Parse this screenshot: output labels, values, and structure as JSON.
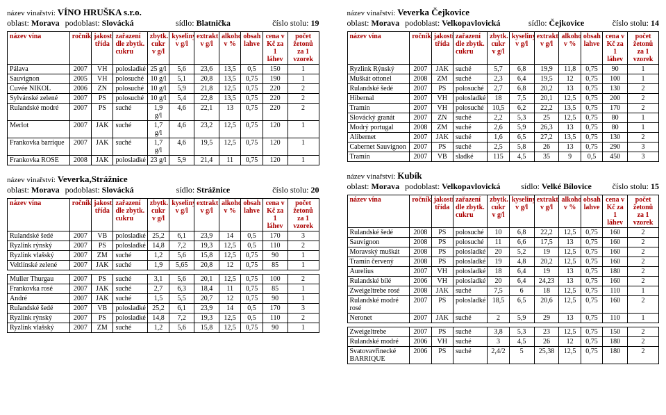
{
  "headerColors": {
    "headerText": "#a00000",
    "border": "#000000",
    "background": "#ffffff"
  },
  "columns": [
    {
      "key": "name",
      "label": "název vína",
      "cls": "col-name"
    },
    {
      "key": "year",
      "label": "ročník",
      "cls": "col-year num"
    },
    {
      "key": "class",
      "label": "jakostí třída",
      "cls": "col-class num"
    },
    {
      "key": "sugar",
      "label": "zařazení dle zbytk. cukru",
      "cls": "col-sugar"
    },
    {
      "key": "res",
      "label": "zbytk. cukr v g/l",
      "cls": "col-res num"
    },
    {
      "key": "acid",
      "label": "kyseliny v g/l",
      "cls": "col-acid num"
    },
    {
      "key": "ext",
      "label": "extrakt v g/l",
      "cls": "col-ext num"
    },
    {
      "key": "alc",
      "label": "alkohol v %",
      "cls": "col-alc num"
    },
    {
      "key": "bot",
      "label": "obsah lahve",
      "cls": "col-bot num"
    },
    {
      "key": "price",
      "label": "cena v Kč za 1 láhev",
      "cls": "col-price num"
    },
    {
      "key": "tok",
      "label": "počet žetonů za 1 vzorek",
      "cls": "col-tok num"
    }
  ],
  "blocks": [
    {
      "col": 0,
      "winery": "VÍNO HRUŠKA s.r.o.",
      "region": "Morava",
      "subregion": "Slovácká",
      "seat": "Blatnička",
      "tableNo": "19",
      "rows": [
        [
          "Pálava",
          "2007",
          "VH",
          "polosladké",
          "25 g/l",
          "5,6",
          "23,6",
          "13,5",
          "0,5",
          "150",
          "1"
        ],
        [
          "Sauvignon",
          "2005",
          "VH",
          "polosuché",
          "10 g/l",
          "5,1",
          "20,8",
          "13,5",
          "0,75",
          "190",
          "1"
        ],
        [
          "Cuvée NIKOL",
          "2006",
          "ZN",
          "polosuché",
          "10 g/l",
          "5,9",
          "21,8",
          "12,5",
          "0,75",
          "220",
          "2"
        ],
        [
          "Sylvánské zelené",
          "2007",
          "PS",
          "polosuché",
          "10 g/l",
          "5,4",
          "22,8",
          "13,5",
          "0,75",
          "220",
          "2"
        ],
        [
          "Rulandské modré",
          "2007",
          "PS",
          "suché",
          "1,9 g/l",
          "4,6",
          "22,1",
          "13",
          "0,75",
          "220",
          "2"
        ],
        [
          "Merlot",
          "2007",
          "JAK",
          "suché",
          "1,7 g/l",
          "4,6",
          "23,2",
          "12,5",
          "0,75",
          "120",
          "1"
        ],
        [
          "Frankovka barrique",
          "2007",
          "JAK",
          "suché",
          "1,7 g/l",
          "4,6",
          "19,5",
          "12,5",
          "0,75",
          "120",
          "1"
        ],
        [
          "Frankovka ROSE",
          "2008",
          "JAK",
          "polosladké",
          "23 g/l",
          "5,9",
          "21,4",
          "11",
          "0,75",
          "120",
          "1"
        ]
      ]
    },
    {
      "col": 0,
      "winery": "Veverka,Strážnice",
      "region": "Morava",
      "subregion": "Slovácká",
      "seat": "Strážnice",
      "tableNo": "20",
      "rows": [
        [
          "Rulandské šedé",
          "2007",
          "VB",
          "polosladké",
          "25,2",
          "6,1",
          "23,9",
          "14",
          "0,5",
          "170",
          "3"
        ],
        [
          "Ryzlink rýnský",
          "2007",
          "PS",
          "polosladké",
          "14,8",
          "7,2",
          "19,3",
          "12,5",
          "0,5",
          "110",
          "2"
        ],
        [
          "Ryzlink vlašský",
          "2007",
          "ZM",
          "suché",
          "1,2",
          "5,6",
          "15,8",
          "12,5",
          "0,75",
          "90",
          "1"
        ],
        [
          "Veltlínské zelené",
          "2007",
          "JAK",
          "suché",
          "1,9",
          "5,65",
          "20,8",
          "12",
          "0,75",
          "85",
          "1"
        ],
        [
          "__gap__"
        ],
        [
          "Muller Thurgau",
          "2007",
          "PS",
          "suché",
          "3,1",
          "5,6",
          "20,1",
          "12,5",
          "0,75",
          "100",
          "2"
        ],
        [
          "Frankovka rosé",
          "2007",
          "JAK",
          "suché",
          "2,7",
          "6,3",
          "18,4",
          "11",
          "0,75",
          "85",
          "1"
        ],
        [
          "André",
          "2007",
          "JAK",
          "suché",
          "1,5",
          "5,5",
          "20,7",
          "12",
          "0,75",
          "90",
          "1"
        ],
        [
          "Rulandské šedé",
          "2007",
          "VB",
          "polosladké",
          "25,2",
          "6,1",
          "23,9",
          "14",
          "0,5",
          "170",
          "3"
        ],
        [
          "Ryzlink rýnský",
          "2007",
          "PS",
          "polosladké",
          "14,8",
          "7,2",
          "19,3",
          "12,5",
          "0,5",
          "110",
          "2"
        ],
        [
          "Ryzlink vlašský",
          "2007",
          "ZM",
          "suché",
          "1,2",
          "5,6",
          "15,8",
          "12,5",
          "0,75",
          "90",
          "1"
        ]
      ]
    },
    {
      "col": 1,
      "winery": "Veverka Čejkovice",
      "region": "Morava",
      "subregion": "Velkopavlovická",
      "seat": "Čejkovice",
      "tableNo": "14",
      "rows": [
        [
          "Ryzlink Rýnský",
          "2007",
          "JAK",
          "suché",
          "5,7",
          "6,8",
          "19,9",
          "11,8",
          "0,75",
          "90",
          "1"
        ],
        [
          "Muškát ottonel",
          "2008",
          "ZM",
          "suché",
          "2,3",
          "6,4",
          "19,5",
          "12",
          "0,75",
          "100",
          "1"
        ],
        [
          "Rulandské šedé",
          "2007",
          "PS",
          "polosuché",
          "2,7",
          "6,8",
          "20,2",
          "13",
          "0,75",
          "130",
          "2"
        ],
        [
          "Hibernal",
          "2007",
          "VH",
          "polosladké",
          "18",
          "7,5",
          "20,1",
          "12,5",
          "0,75",
          "200",
          "2"
        ],
        [
          "Tramín",
          "2007",
          "VH",
          "polosuché",
          "10,5",
          "6,2",
          "22,2",
          "13,5",
          "0,75",
          "170",
          "2"
        ],
        [
          "Slovácký granát",
          "2007",
          "ZN",
          "suché",
          "2,2",
          "5,3",
          "25",
          "12,5",
          "0,75",
          "80",
          "1"
        ],
        [
          "Modrý portugal",
          "2008",
          "ZM",
          "suché",
          "2,6",
          "5,9",
          "26,3",
          "13",
          "0,75",
          "80",
          "1"
        ],
        [
          "Alibernet",
          "2007",
          "JAK",
          "suché",
          "1,6",
          "6,5",
          "27,2",
          "13,5",
          "0,75",
          "130",
          "2"
        ],
        [
          "Cabernet Sauvignon",
          "2007",
          "PS",
          "suché",
          "2,5",
          "5,8",
          "26",
          "13",
          "0,75",
          "290",
          "3"
        ],
        [
          "Tramín",
          "2007",
          "VB",
          "sladké",
          "115",
          "4,5",
          "35",
          "9",
          "0,5",
          "450",
          "3"
        ]
      ]
    },
    {
      "col": 1,
      "winery": "Kubík",
      "region": "Morava",
      "subregion": "Velkopavlovická",
      "seat": "Velké Bílovice",
      "tableNo": "15",
      "rows": [
        [
          "Rulandské šedé",
          "2008",
          "PS",
          "polosuché",
          "10",
          "6,8",
          "22,2",
          "12,5",
          "0,75",
          "160",
          "2"
        ],
        [
          "Sauvignon",
          "2008",
          "PS",
          "polosuché",
          "11",
          "6,6",
          "17,5",
          "13",
          "0,75",
          "160",
          "2"
        ],
        [
          "Moravský muškát",
          "2008",
          "PS",
          "polosladké",
          "20",
          "5,2",
          "19",
          "12,5",
          "0,75",
          "160",
          "2"
        ],
        [
          "Tramín červený",
          "2008",
          "PS",
          "polosladké",
          "19",
          "4,8",
          "20,2",
          "12,5",
          "0,75",
          "160",
          "2"
        ],
        [
          "Aurelius",
          "2007",
          "VH",
          "polosladké",
          "18",
          "6,4",
          "19",
          "13",
          "0,75",
          "180",
          "2"
        ],
        [
          "Rulandské bílé",
          "2006",
          "VH",
          "polosladké",
          "20",
          "6,4",
          "24,23",
          "13",
          "0,75",
          "160",
          "2"
        ],
        [
          "Zweigeltrebe rosé",
          "2008",
          "JAK",
          "suché",
          "7,5",
          "6",
          "18",
          "12,5",
          "0,75",
          "110",
          "1"
        ],
        [
          "Rulandské modré rosé",
          "2007",
          "PS",
          "polosladké",
          "18,5",
          "6,5",
          "20,6",
          "12,5",
          "0,75",
          "160",
          "2"
        ],
        [
          "Neronet",
          "2007",
          "JAK",
          "suché",
          "2",
          "5,9",
          "29",
          "13",
          "0,75",
          "110",
          "1"
        ],
        [
          "__gap__"
        ],
        [
          "Zweigeltrebe",
          "2007",
          "PS",
          "suché",
          "3,8",
          "5,3",
          "23",
          "12,5",
          "0,75",
          "150",
          "2"
        ],
        [
          "Rulandské modré",
          "2006",
          "VH",
          "suché",
          "3",
          "4,5",
          "26",
          "12",
          "0,75",
          "180",
          "2"
        ],
        [
          "Svatovavřinecké BARRIQUE",
          "2006",
          "PS",
          "suché",
          "2,4/2",
          "5",
          "25,38",
          "12,5",
          "0,75",
          "180",
          "2"
        ]
      ]
    }
  ],
  "labels": {
    "wineryPrefix": "název vinařství: ",
    "region": "oblast: ",
    "subregion": "podoblast: ",
    "seat": "sídlo: ",
    "tableNo": "číslo stolu: "
  }
}
